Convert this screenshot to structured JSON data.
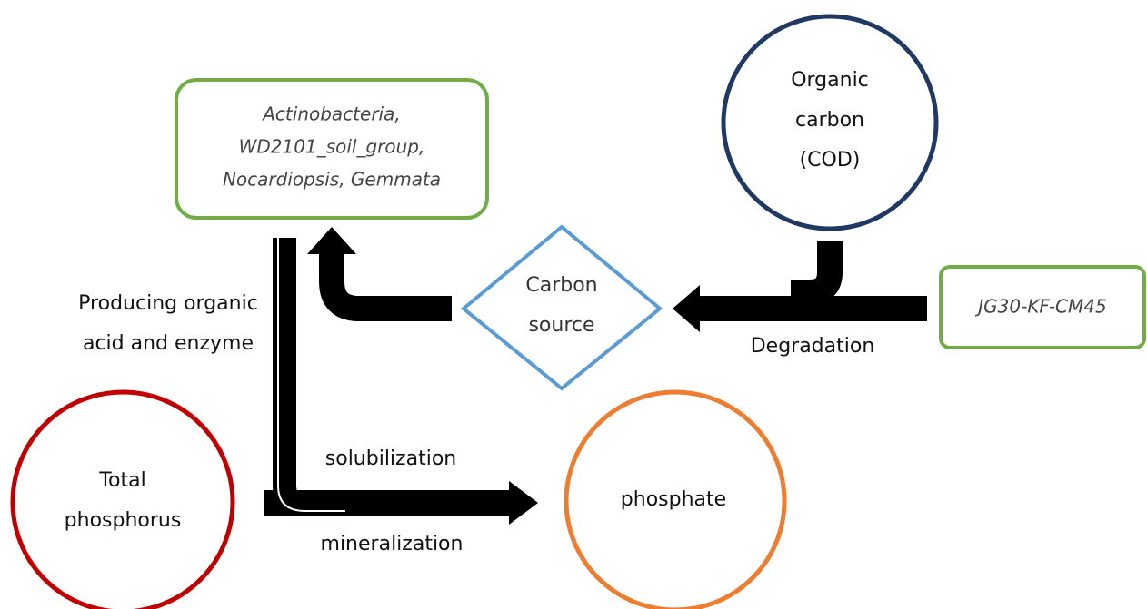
{
  "nodes": [
    {
      "id": "bacteria",
      "lines": [
        "Actinobacteria,",
        "WD2101_soil_group,",
        "Nocardiopsis, Gemmata"
      ]
    },
    {
      "id": "organic-carbon",
      "lines": [
        "Organic",
        "carbon",
        "(COD)"
      ]
    },
    {
      "id": "carbon-source",
      "lines": [
        "Carbon",
        "source"
      ]
    },
    {
      "id": "jg30",
      "lines": [
        "JG30-KF-CM45"
      ]
    },
    {
      "id": "total-phosphorus",
      "lines": [
        "Total",
        "phosphorus"
      ]
    },
    {
      "id": "phosphate",
      "lines": [
        "phosphate"
      ]
    }
  ],
  "labels": {
    "producing": [
      "Producing organic",
      "acid and enzyme"
    ],
    "degradation": "Degradation",
    "solubilization": "solubilization",
    "mineralization": "mineralization"
  }
}
